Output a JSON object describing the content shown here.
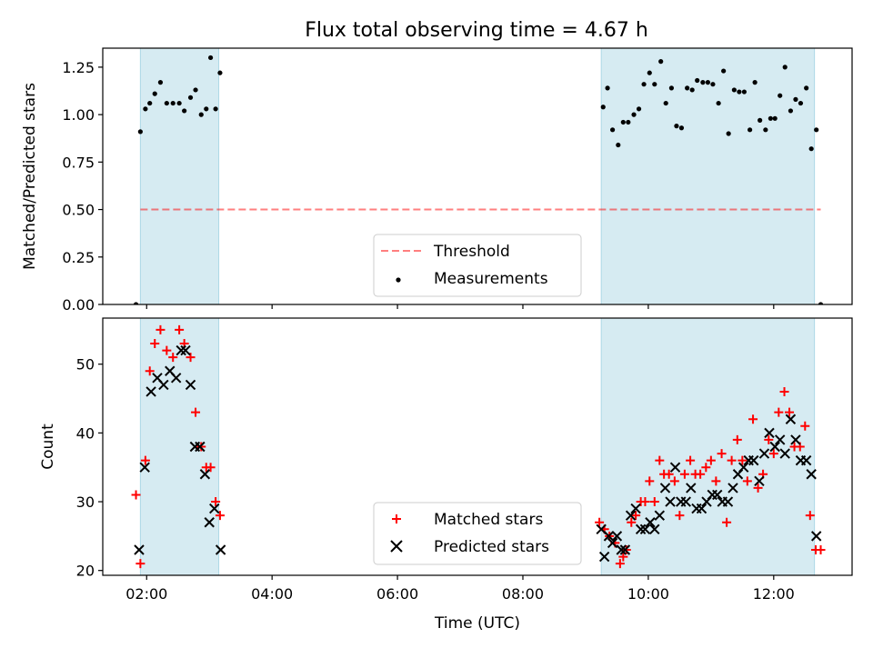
{
  "title": "Flux total observing time = 4.67 h",
  "colors": {
    "band": "#add8e6",
    "threshold": "#ff0000",
    "measurements": "#000000",
    "matched": "#ff0000",
    "predicted": "#000000"
  },
  "chart_data": [
    {
      "type": "scatter",
      "ylabel": "Matched/Predicted stars",
      "ylim": [
        0,
        1.35
      ],
      "yticks": [
        0,
        0.25,
        0.5,
        0.75,
        1.0,
        1.25
      ],
      "ytick_labels": [
        "0.00",
        "0.25",
        "0.50",
        "0.75",
        "1.00",
        "1.25"
      ],
      "xlim": [
        1.3,
        13.25
      ],
      "xticks": [
        2,
        4,
        6,
        8,
        10,
        12
      ],
      "shaded_bands": [
        [
          1.9,
          3.15
        ],
        [
          9.25,
          12.65
        ]
      ],
      "legend": {
        "position": "bottom-center",
        "entries": [
          "Threshold",
          "Measurements"
        ]
      },
      "threshold": {
        "name": "Threshold",
        "y": 0.5,
        "x_range": [
          1.9,
          12.75
        ]
      },
      "series": [
        {
          "name": "Measurements",
          "x": [
            1.83,
            1.9,
            1.98,
            2.05,
            2.13,
            2.22,
            2.32,
            2.42,
            2.52,
            2.6,
            2.7,
            2.78,
            2.87,
            2.95,
            3.02,
            3.1,
            3.17,
            9.28,
            9.35,
            9.43,
            9.52,
            9.6,
            9.68,
            9.77,
            9.85,
            9.93,
            10.02,
            10.1,
            10.2,
            10.28,
            10.37,
            10.45,
            10.53,
            10.62,
            10.7,
            10.78,
            10.87,
            10.95,
            11.03,
            11.12,
            11.2,
            11.28,
            11.37,
            11.45,
            11.53,
            11.62,
            11.7,
            11.78,
            11.87,
            11.95,
            12.02,
            12.1,
            12.18,
            12.27,
            12.35,
            12.43,
            12.52,
            12.6,
            12.68,
            12.75
          ],
          "y": [
            0.0,
            0.91,
            1.03,
            1.06,
            1.11,
            1.17,
            1.06,
            1.06,
            1.06,
            1.02,
            1.09,
            1.13,
            1.0,
            1.03,
            1.3,
            1.03,
            1.22,
            1.04,
            1.14,
            0.92,
            0.84,
            0.96,
            0.96,
            1.0,
            1.03,
            1.16,
            1.22,
            1.16,
            1.28,
            1.06,
            1.14,
            0.94,
            0.93,
            1.14,
            1.13,
            1.18,
            1.17,
            1.17,
            1.16,
            1.06,
            1.23,
            0.9,
            1.13,
            1.12,
            1.12,
            0.92,
            1.17,
            0.97,
            0.92,
            0.98,
            0.98,
            1.1,
            1.25,
            1.02,
            1.08,
            1.06,
            1.14,
            0.82,
            0.92,
            0.0
          ]
        }
      ]
    },
    {
      "type": "scatter",
      "xlabel": "Time (UTC)",
      "ylabel": "Count",
      "ylim": [
        19.3,
        56.7
      ],
      "yticks": [
        20,
        30,
        40,
        50
      ],
      "ytick_labels": [
        "20",
        "30",
        "40",
        "50"
      ],
      "xlim": [
        1.3,
        13.25
      ],
      "xticks": [
        2,
        4,
        6,
        8,
        10,
        12
      ],
      "xtick_labels": [
        "02:00",
        "04:00",
        "06:00",
        "08:00",
        "10:00",
        "12:00"
      ],
      "shaded_bands": [
        [
          1.9,
          3.15
        ],
        [
          9.25,
          12.65
        ]
      ],
      "legend": {
        "position": "bottom-center",
        "entries": [
          "Matched stars",
          "Predicted stars"
        ]
      },
      "series": [
        {
          "name": "Matched stars",
          "marker": "plus",
          "x": [
            1.83,
            1.9,
            1.98,
            2.05,
            2.13,
            2.22,
            2.32,
            2.42,
            2.52,
            2.6,
            2.7,
            2.78,
            2.87,
            2.95,
            3.02,
            3.1,
            3.17,
            9.22,
            9.3,
            9.38,
            9.47,
            9.55,
            9.6,
            9.65,
            9.73,
            9.8,
            9.88,
            9.95,
            10.02,
            10.1,
            10.18,
            10.25,
            10.33,
            10.42,
            10.5,
            10.58,
            10.67,
            10.75,
            10.83,
            10.92,
            11.0,
            11.08,
            11.17,
            11.25,
            11.33,
            11.42,
            11.5,
            11.58,
            11.67,
            11.75,
            11.83,
            11.92,
            12.0,
            12.08,
            12.17,
            12.25,
            12.33,
            12.42,
            12.5,
            12.58,
            12.67,
            12.75
          ],
          "y": [
            31,
            21,
            36,
            49,
            53,
            55,
            52,
            51,
            55,
            53,
            51,
            43,
            38,
            35,
            35,
            30,
            28,
            27,
            26,
            25,
            24,
            21,
            22,
            23,
            27,
            28,
            30,
            30,
            33,
            30,
            36,
            34,
            34,
            33,
            28,
            34,
            36,
            34,
            34,
            35,
            36,
            33,
            37,
            27,
            36,
            39,
            36,
            33,
            42,
            32,
            34,
            39,
            37,
            43,
            46,
            43,
            38,
            38,
            41,
            28,
            23,
            23
          ]
        },
        {
          "name": "Predicted stars",
          "marker": "x",
          "x": [
            1.88,
            1.97,
            2.07,
            2.17,
            2.27,
            2.37,
            2.47,
            2.55,
            2.62,
            2.7,
            2.77,
            2.85,
            2.93,
            3.0,
            3.08,
            3.18,
            9.25,
            9.3,
            9.37,
            9.43,
            9.5,
            9.57,
            9.63,
            9.72,
            9.8,
            9.88,
            9.95,
            10.03,
            10.1,
            10.18,
            10.27,
            10.35,
            10.43,
            10.52,
            10.6,
            10.68,
            10.77,
            10.85,
            10.93,
            11.02,
            11.1,
            11.18,
            11.27,
            11.35,
            11.43,
            11.52,
            11.6,
            11.68,
            11.77,
            11.85,
            11.93,
            12.02,
            12.1,
            12.18,
            12.27,
            12.35,
            12.43,
            12.52,
            12.6,
            12.68
          ],
          "y": [
            23,
            35,
            46,
            48,
            47,
            49,
            48,
            52,
            52,
            47,
            38,
            38,
            34,
            27,
            29,
            23,
            26,
            22,
            25,
            24,
            25,
            23,
            23,
            28,
            29,
            26,
            26,
            27,
            26,
            28,
            32,
            30,
            35,
            30,
            30,
            32,
            29,
            29,
            30,
            31,
            31,
            30,
            30,
            32,
            34,
            35,
            36,
            36,
            33,
            37,
            40,
            38,
            39,
            37,
            42,
            39,
            36,
            36,
            34,
            25
          ]
        }
      ]
    }
  ]
}
